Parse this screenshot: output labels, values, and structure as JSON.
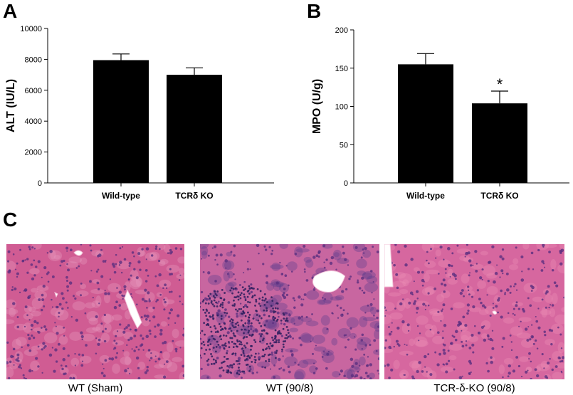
{
  "panels": {
    "a": "A",
    "b": "B",
    "c": "C"
  },
  "chart_data": [
    {
      "type": "bar",
      "categories": [
        "Wild-type",
        "TCRδ KO"
      ],
      "values": [
        7950,
        7000
      ],
      "error": [
        400,
        450
      ],
      "ylabel": "ALT (IU/L)",
      "ylim": [
        0,
        10000
      ],
      "yticks": [
        0,
        2000,
        4000,
        6000,
        8000,
        10000
      ],
      "annotations": [
        "",
        ""
      ],
      "grid": false,
      "bar_color": "#000000"
    },
    {
      "type": "bar",
      "categories": [
        "Wild-type",
        "TCRδ KO"
      ],
      "values": [
        155,
        104
      ],
      "error": [
        14,
        16
      ],
      "ylabel": "MPO (U/g)",
      "ylim": [
        0,
        200
      ],
      "yticks": [
        0,
        50,
        100,
        150,
        200
      ],
      "annotations": [
        "",
        "*"
      ],
      "grid": false,
      "bar_color": "#000000"
    }
  ],
  "micrographs": [
    {
      "caption": "WT (Sham)",
      "tissue": "#d05c93",
      "accent": "#e89ac0"
    },
    {
      "caption": "WT (90/8)",
      "tissue": "#c866a0",
      "accent": "#5a3b8c"
    },
    {
      "caption": "TCR-δ-KO (90/8)",
      "tissue": "#d6679f",
      "accent": "#ee8fb8"
    }
  ]
}
